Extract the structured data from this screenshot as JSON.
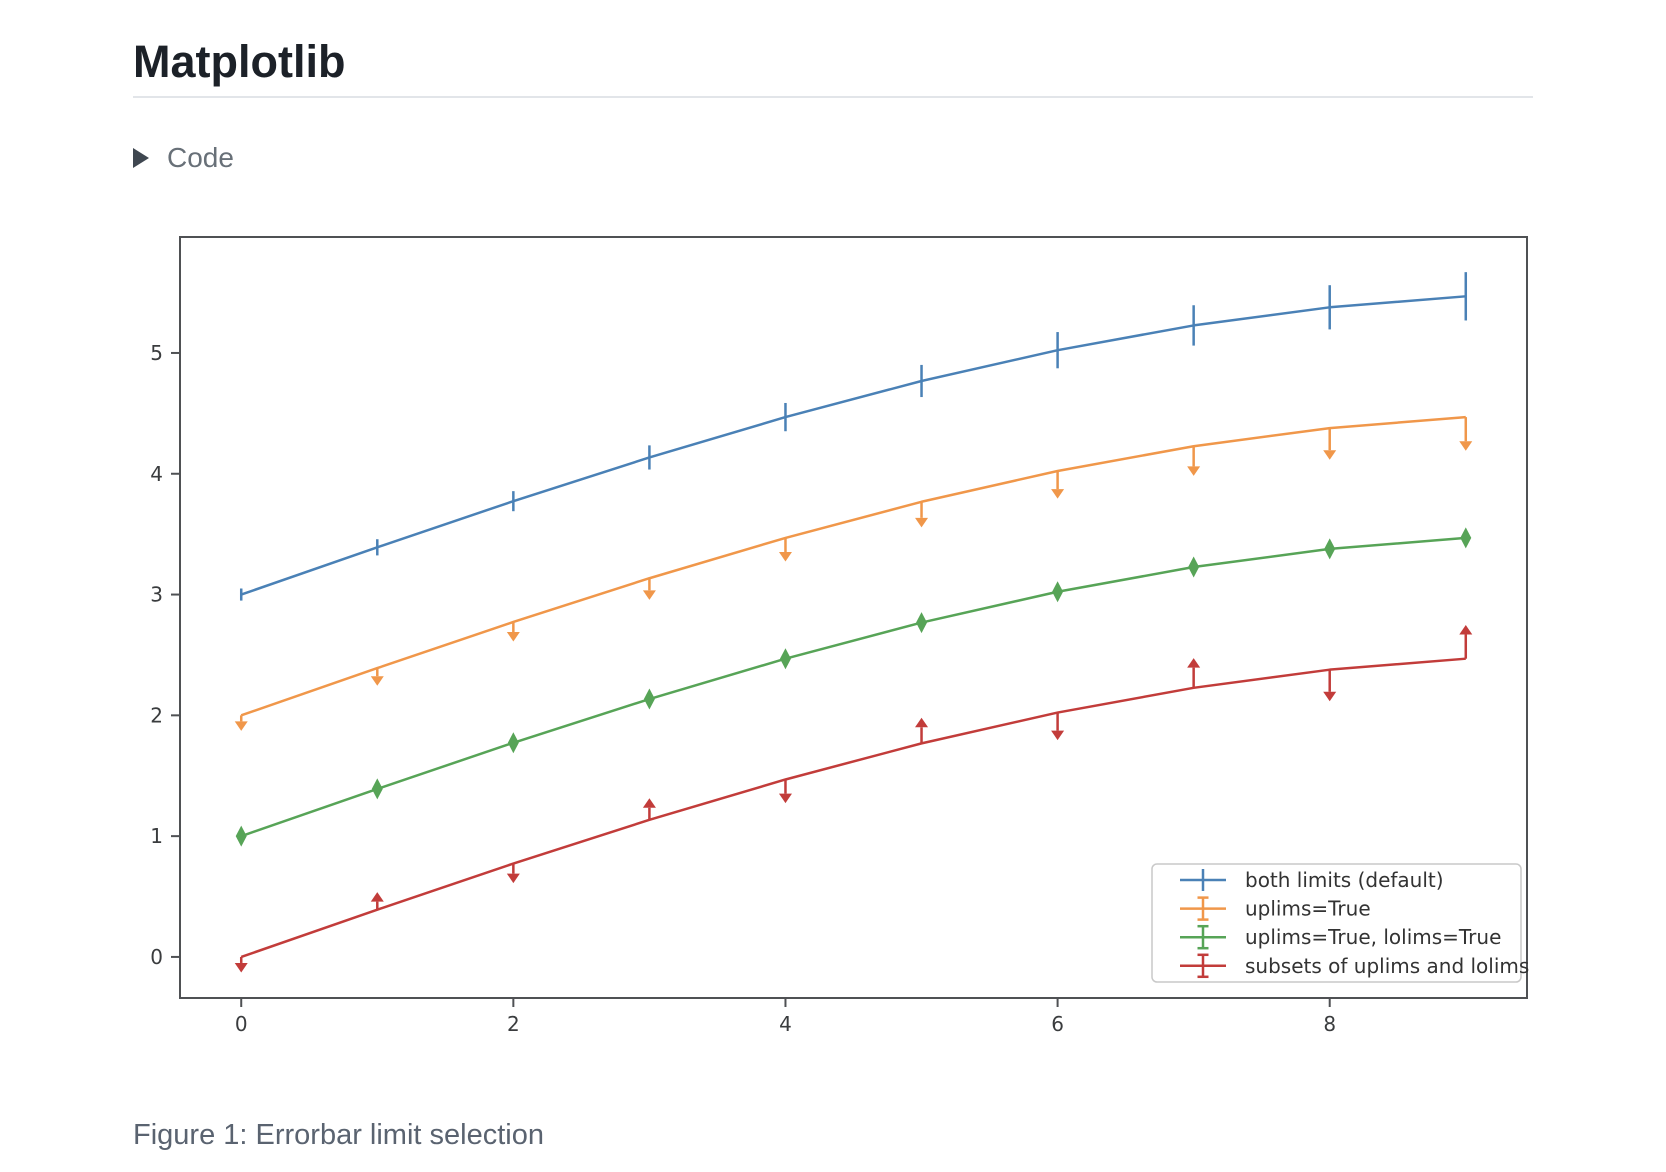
{
  "page": {
    "title": "Matplotlib",
    "code_toggle_label": "Code",
    "caption": "Figure 1: Errorbar limit selection"
  },
  "chart_data": {
    "type": "line",
    "title": "",
    "xlabel": "",
    "ylabel": "",
    "grid": false,
    "legend_position": "lower right",
    "x": [
      0,
      1,
      2,
      3,
      4,
      5,
      6,
      7,
      8,
      9
    ],
    "xlim": [
      -0.45,
      9.45
    ],
    "ylim": [
      -0.34,
      5.96
    ],
    "xticks": [
      0,
      2,
      4,
      6,
      8
    ],
    "yticks": [
      0,
      1,
      2,
      3,
      4,
      5
    ],
    "yerr": [
      0.05,
      0.067,
      0.083,
      0.1,
      0.117,
      0.133,
      0.15,
      0.167,
      0.183,
      0.2
    ],
    "series": [
      {
        "label": "both limits (default)",
        "color": "#4a81b6",
        "limit_style": "both",
        "values": [
          3.0,
          3.391,
          3.773,
          4.135,
          4.469,
          4.768,
          5.023,
          5.228,
          5.378,
          5.469
        ]
      },
      {
        "label": "uplims=True",
        "color": "#f0974a",
        "limit_style": "uplims",
        "values": [
          2.0,
          2.391,
          2.773,
          3.135,
          3.469,
          3.768,
          4.023,
          4.228,
          4.378,
          4.469
        ]
      },
      {
        "label": "uplims=True, lolims=True",
        "color": "#57a457",
        "limit_style": "uplims_lolims",
        "values": [
          1.0,
          1.391,
          1.773,
          2.135,
          2.469,
          2.768,
          3.023,
          3.228,
          3.378,
          3.469
        ]
      },
      {
        "label": "subsets of uplims and lolims",
        "color": "#c23c3a",
        "limit_style": "subsets",
        "arrows": [
          "down",
          "up",
          "down",
          "up",
          "down",
          "up",
          "down",
          "up",
          "down",
          "up"
        ],
        "values": [
          0.0,
          0.391,
          0.773,
          1.135,
          1.469,
          1.768,
          2.023,
          2.228,
          2.378,
          2.469
        ]
      }
    ],
    "axis_color": "#4f5154",
    "tick_label_color": "#3a3c3e",
    "legend_frame_color": "#c9c9c9"
  }
}
